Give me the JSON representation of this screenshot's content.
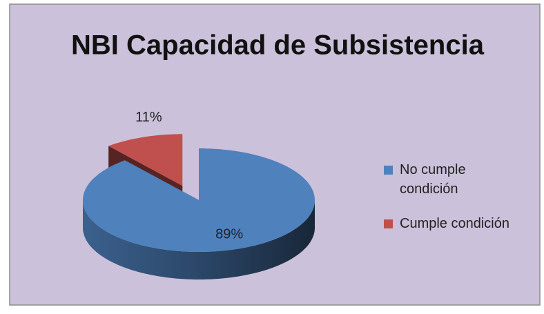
{
  "chart_data": {
    "type": "pie",
    "title": "NBI Capacidad de Subsistencia",
    "categories": [
      "No cumple condición",
      "Cumple condición"
    ],
    "values": [
      89,
      11
    ],
    "value_labels": [
      "89%",
      "11%"
    ],
    "colors": [
      "#4f81bd",
      "#c0504d"
    ],
    "legend": "right"
  }
}
